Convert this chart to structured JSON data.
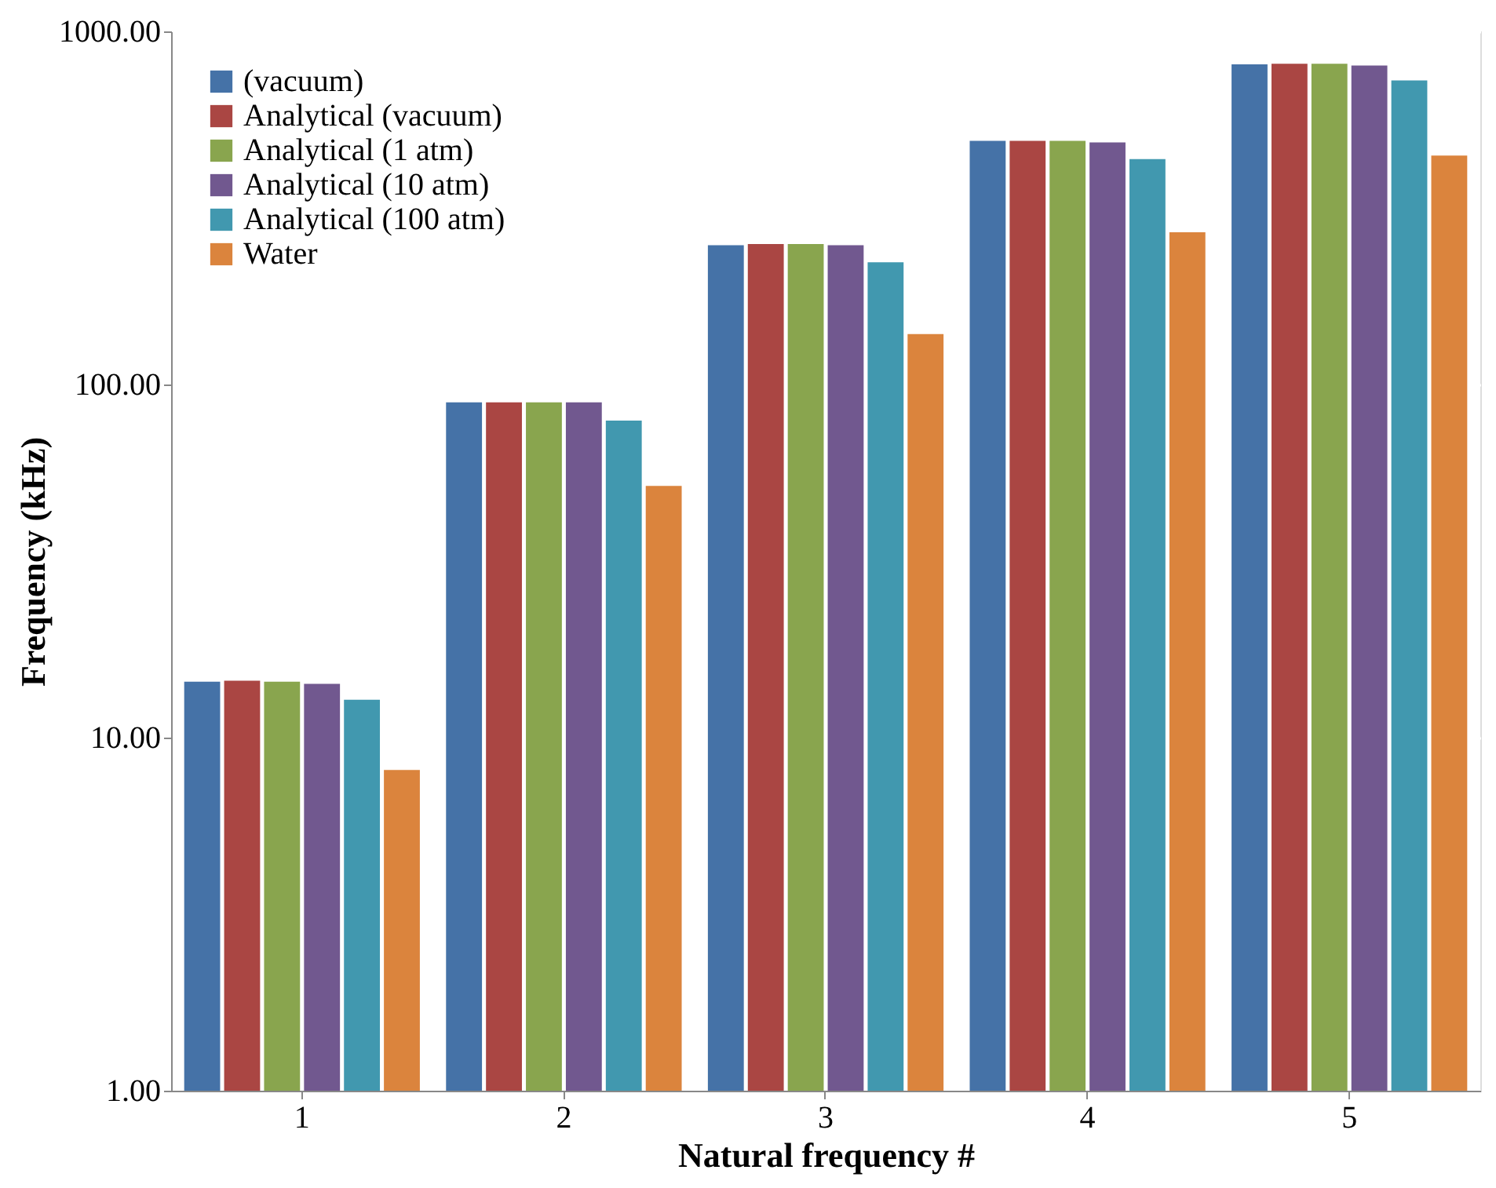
{
  "chart_data": {
    "type": "bar",
    "xlabel": "Natural frequency #",
    "ylabel": "Frequency (kHz)",
    "categories": [
      "1",
      "2",
      "3",
      "4",
      "5"
    ],
    "series": [
      {
        "name": "(vacuum)",
        "color": "#4572a7",
        "values": [
          14.4,
          89,
          248,
          490,
          807
        ]
      },
      {
        "name": "Analytical (vacuum)",
        "color": "#aa4643",
        "values": [
          14.5,
          89,
          250,
          490,
          810
        ]
      },
      {
        "name": "Analytical (1 atm)",
        "color": "#89a54e",
        "values": [
          14.4,
          89,
          250,
          490,
          810
        ]
      },
      {
        "name": "Analytical (10 atm)",
        "color": "#71588f",
        "values": [
          14.2,
          89,
          248,
          485,
          800
        ]
      },
      {
        "name": "Analytical (100 atm)",
        "color": "#4198af",
        "values": [
          12.8,
          79,
          222,
          435,
          726
        ]
      },
      {
        "name": "Water",
        "color": "#db843d",
        "values": [
          8.1,
          51.6,
          139,
          270,
          445
        ]
      }
    ],
    "log": true,
    "ylim": [
      1,
      1000
    ],
    "yticks": [
      {
        "value": 1,
        "label": "1.00"
      },
      {
        "value": 10,
        "label": "10.00"
      },
      {
        "value": 100,
        "label": "100.00"
      },
      {
        "value": 1000,
        "label": "1000.00"
      }
    ],
    "grid": "y",
    "legend": "top left"
  }
}
